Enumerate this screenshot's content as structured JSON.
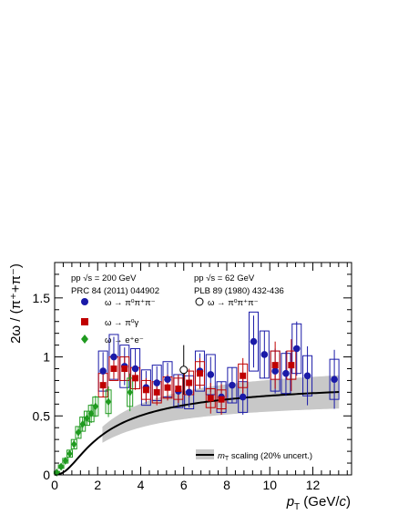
{
  "chart_data": {
    "type": "scatter",
    "title": "",
    "xlabel": "p_T (GeV/c)",
    "ylabel": "2ω / (π⁺+π⁻)",
    "xlim": [
      0,
      13.8
    ],
    "ylim": [
      0,
      1.8
    ],
    "xticks": [
      0,
      2,
      4,
      6,
      8,
      10,
      12
    ],
    "yticks": [
      0,
      0.5,
      1,
      1.5
    ],
    "xtick_labels": [
      "0",
      "2",
      "4",
      "6",
      "8",
      "10",
      "12"
    ],
    "ytick_labels": [
      "0",
      "0.5",
      "1",
      "1.5"
    ],
    "legend_left": {
      "line1": "pp √s = 200 GeV",
      "line2": "PRC 84 (2011) 044902"
    },
    "legend_right": {
      "line1": "pp √s = 62 GeV",
      "line2": "PLB 89 (1980) 432-436"
    },
    "series": [
      {
        "name": "ω → π⁰π⁺π⁻",
        "color": "#1a1aa8",
        "marker": "circle",
        "points": [
          {
            "x": 2.25,
            "y": 0.88,
            "stat": 0.16,
            "sys": 0.17
          },
          {
            "x": 2.75,
            "y": 1.0,
            "stat": 0.17,
            "sys": 0.19
          },
          {
            "x": 3.25,
            "y": 0.92,
            "stat": 0.16,
            "sys": 0.18
          },
          {
            "x": 3.75,
            "y": 0.9,
            "stat": 0.17,
            "sys": 0.17
          },
          {
            "x": 4.25,
            "y": 0.74,
            "stat": 0.14,
            "sys": 0.15
          },
          {
            "x": 4.75,
            "y": 0.78,
            "stat": 0.14,
            "sys": 0.15
          },
          {
            "x": 5.25,
            "y": 0.81,
            "stat": 0.14,
            "sys": 0.15
          },
          {
            "x": 5.75,
            "y": 0.71,
            "stat": 0.13,
            "sys": 0.14
          },
          {
            "x": 6.25,
            "y": 0.7,
            "stat": 0.13,
            "sys": 0.14
          },
          {
            "x": 6.75,
            "y": 0.88,
            "stat": 0.15,
            "sys": 0.17
          },
          {
            "x": 7.25,
            "y": 0.85,
            "stat": 0.15,
            "sys": 0.17
          },
          {
            "x": 7.75,
            "y": 0.66,
            "stat": 0.13,
            "sys": 0.13
          },
          {
            "x": 8.25,
            "y": 0.76,
            "stat": 0.15,
            "sys": 0.15
          },
          {
            "x": 8.75,
            "y": 0.66,
            "stat": 0.15,
            "sys": 0.13
          },
          {
            "x": 9.25,
            "y": 1.13,
            "stat": 0.22,
            "sys": 0.25
          },
          {
            "x": 9.75,
            "y": 1.02,
            "stat": 0.2,
            "sys": 0.2
          },
          {
            "x": 10.25,
            "y": 0.88,
            "stat": 0.19,
            "sys": 0.17
          },
          {
            "x": 10.75,
            "y": 0.86,
            "stat": 0.19,
            "sys": 0.17
          },
          {
            "x": 11.25,
            "y": 1.07,
            "stat": 0.23,
            "sys": 0.21
          },
          {
            "x": 11.75,
            "y": 0.84,
            "stat": 0.25,
            "sys": 0.17
          },
          {
            "x": 13.0,
            "y": 0.81,
            "stat": 0.25,
            "sys": 0.17
          }
        ]
      },
      {
        "name": "ω → π⁰γ",
        "color": "#c00000",
        "marker": "square",
        "points": [
          {
            "x": 2.25,
            "y": 0.76,
            "stat": 0.1,
            "sys": 0.1
          },
          {
            "x": 2.75,
            "y": 0.9,
            "stat": 0.09,
            "sys": 0.1
          },
          {
            "x": 3.25,
            "y": 0.9,
            "stat": 0.1,
            "sys": 0.1
          },
          {
            "x": 3.75,
            "y": 0.82,
            "stat": 0.1,
            "sys": 0.09
          },
          {
            "x": 4.25,
            "y": 0.72,
            "stat": 0.1,
            "sys": 0.08
          },
          {
            "x": 4.75,
            "y": 0.7,
            "stat": 0.11,
            "sys": 0.09
          },
          {
            "x": 5.25,
            "y": 0.74,
            "stat": 0.11,
            "sys": 0.09
          },
          {
            "x": 5.75,
            "y": 0.73,
            "stat": 0.12,
            "sys": 0.09
          },
          {
            "x": 6.25,
            "y": 0.78,
            "stat": 0.12,
            "sys": 0.1
          },
          {
            "x": 6.75,
            "y": 0.86,
            "stat": 0.13,
            "sys": 0.1
          },
          {
            "x": 7.25,
            "y": 0.65,
            "stat": 0.13,
            "sys": 0.08
          },
          {
            "x": 7.75,
            "y": 0.64,
            "stat": 0.13,
            "sys": 0.08
          },
          {
            "x": 8.75,
            "y": 0.84,
            "stat": 0.15,
            "sys": 0.1
          },
          {
            "x": 10.25,
            "y": 0.93,
            "stat": 0.2,
            "sys": 0.12
          },
          {
            "x": 11.0,
            "y": 0.93,
            "stat": 0.22,
            "sys": 0.12
          }
        ]
      },
      {
        "name": "ω → e⁺e⁻",
        "color": "#1f9a1f",
        "marker": "diamond",
        "points": [
          {
            "x": 0.1,
            "y": 0.02,
            "stat": 0.01,
            "sys": 0.01
          },
          {
            "x": 0.3,
            "y": 0.07,
            "stat": 0.02,
            "sys": 0.015
          },
          {
            "x": 0.5,
            "y": 0.12,
            "stat": 0.02,
            "sys": 0.02
          },
          {
            "x": 0.7,
            "y": 0.18,
            "stat": 0.03,
            "sys": 0.03
          },
          {
            "x": 0.9,
            "y": 0.26,
            "stat": 0.04,
            "sys": 0.04
          },
          {
            "x": 1.1,
            "y": 0.36,
            "stat": 0.05,
            "sys": 0.05
          },
          {
            "x": 1.3,
            "y": 0.43,
            "stat": 0.06,
            "sys": 0.06
          },
          {
            "x": 1.5,
            "y": 0.48,
            "stat": 0.06,
            "sys": 0.06
          },
          {
            "x": 1.7,
            "y": 0.52,
            "stat": 0.08,
            "sys": 0.07
          },
          {
            "x": 1.9,
            "y": 0.58,
            "stat": 0.09,
            "sys": 0.08
          },
          {
            "x": 2.5,
            "y": 0.62,
            "stat": 0.13,
            "sys": 0.1
          },
          {
            "x": 3.5,
            "y": 0.7,
            "stat": 0.16,
            "sys": 0.12
          }
        ]
      },
      {
        "name": "ω → π⁰π⁺π⁻",
        "color": "#000000",
        "marker": "open-circle",
        "points": [
          {
            "x": 6.0,
            "y": 0.89,
            "stat": 0.21,
            "sys": 0
          }
        ]
      }
    ],
    "curve": {
      "name": "m_T scaling (20% uncert.)",
      "label_prefix": "m",
      "label_sub": "T",
      "label_suffix": " scaling (20% uncert.)",
      "color": "#000000",
      "band_color": "#c8c8c8",
      "plateau": 0.81,
      "omega_mass_gev": 0.7827,
      "pion_mass_gev": 0.1396,
      "slope_t_gev": 0.16,
      "band_rel_uncertainty": 0.2
    }
  }
}
